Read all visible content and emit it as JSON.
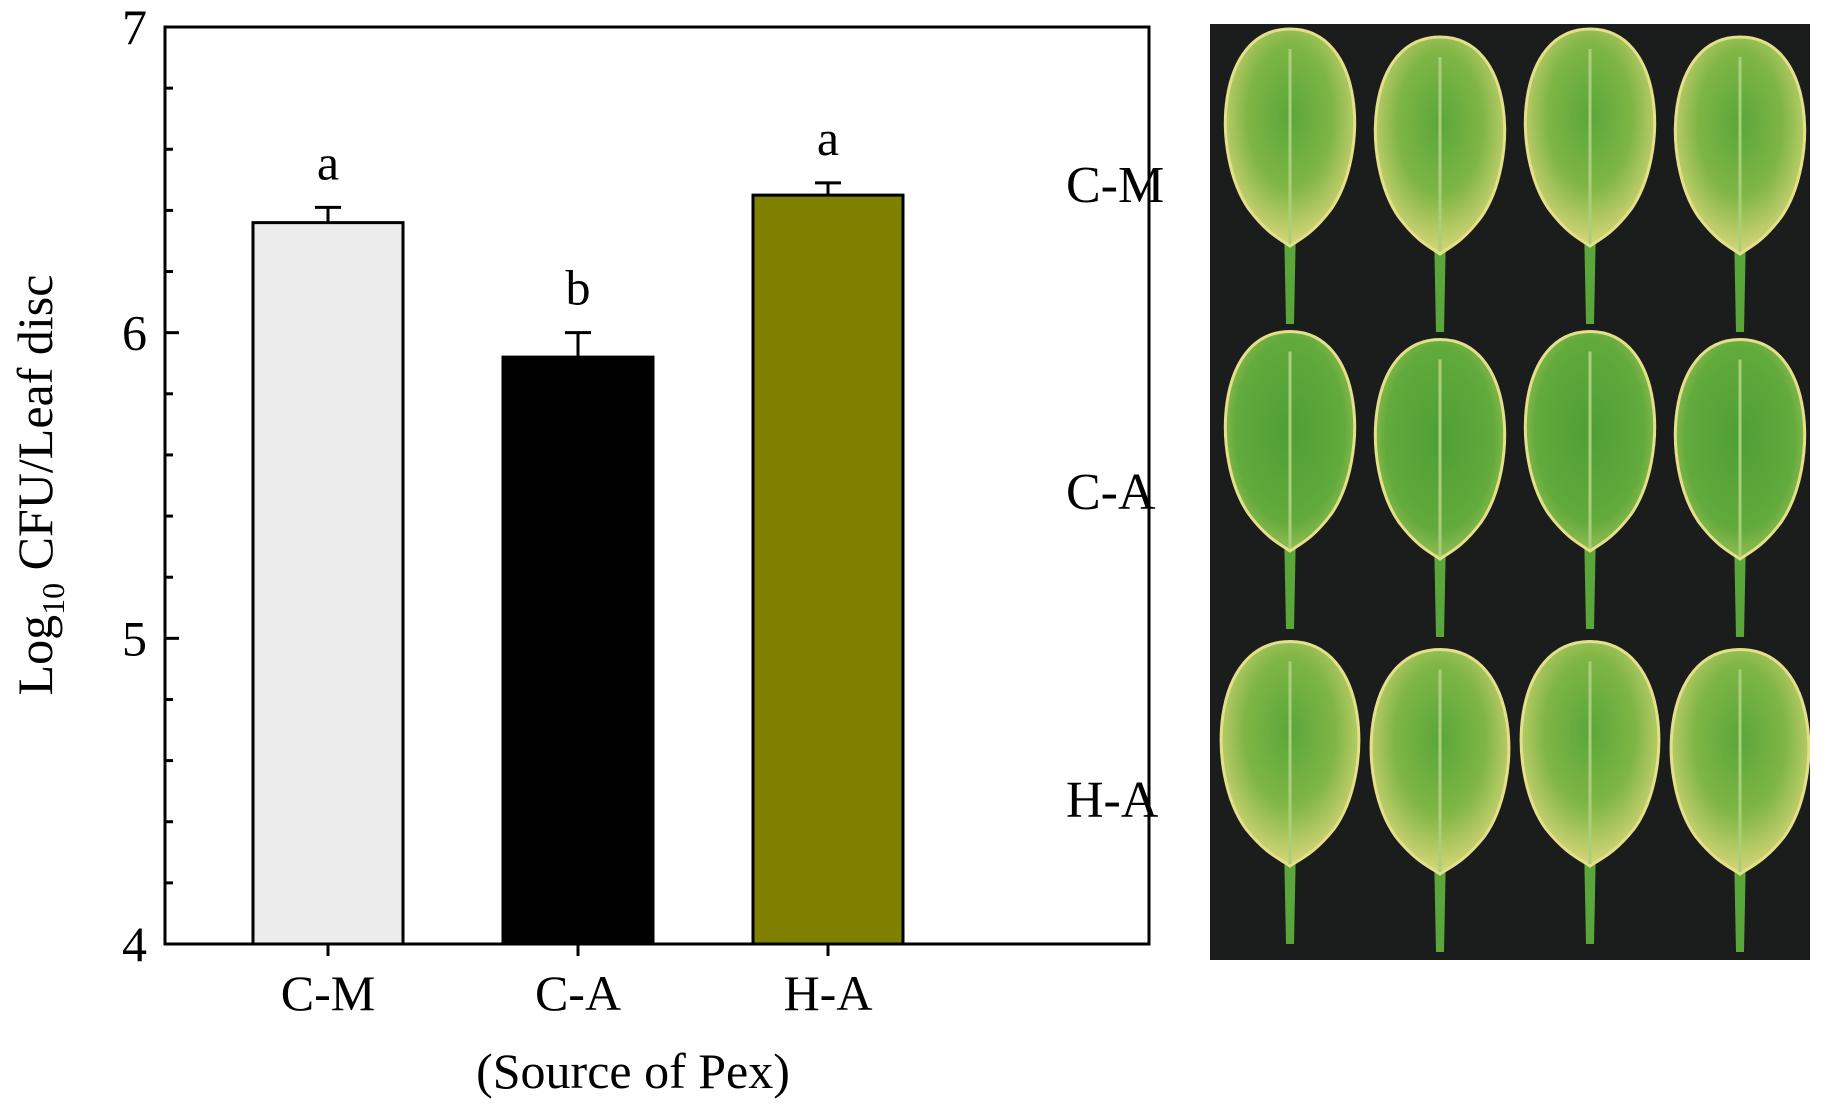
{
  "chart_data": {
    "type": "bar",
    "categories": [
      "C-M",
      "C-A",
      "H-A"
    ],
    "values": [
      6.36,
      5.92,
      6.45
    ],
    "errors": [
      0.05,
      0.08,
      0.04
    ],
    "significance": [
      "a",
      "b",
      "a"
    ],
    "bar_colors": [
      "#ececec",
      "#000000",
      "#808000"
    ],
    "ylim": [
      4,
      7
    ],
    "yticks": [
      "4",
      "5",
      "6",
      "7"
    ],
    "ylabel_main": "Log",
    "ylabel_sub": "10",
    "ylabel_rest": " CFU/Leaf disc",
    "xlabel": "(Source of Pex)"
  },
  "photo": {
    "row_labels": [
      "C-M",
      "C-A",
      "H-A"
    ],
    "background_color": "#1b1d1c",
    "leaf_yellow": "#e4e08a",
    "leaf_green": "#5aa63a"
  }
}
